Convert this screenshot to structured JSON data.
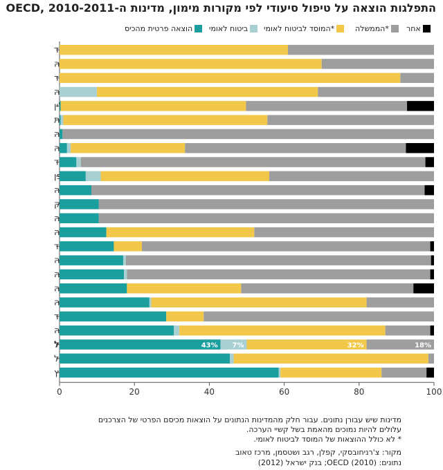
{
  "title": "התפלגות הוצאה על טיפול סיעודי לפי מקורות מימון, מדינות ה-OECD, 2010-2011",
  "colors": {
    "private_insurance": "#1a9e9e",
    "national_insurance": "#a8d0d2",
    "mosad_subsidy": "#f2c84b",
    "government": "#9e9e9e",
    "other": "#000000"
  },
  "chart_data": {
    "type": "bar",
    "orientation": "horizontal",
    "stacked": true,
    "xlim": [
      0,
      100
    ],
    "xticks": [
      "0",
      "20",
      "40",
      "60",
      "80",
      "100"
    ],
    "categories": [
      "איסלנד",
      "צ'כיה",
      "הולנד",
      "בלגיה",
      "פולין",
      "צרפת",
      "שוודיה",
      "הונגריה",
      "ניו זילנד",
      "יפן",
      "אוסטרליה",
      "דנמרק",
      "נורווגיה",
      "אסטוניה",
      "פינלנד",
      "קנדה",
      "אוסטריה",
      "קוריאה",
      "סלובניה",
      "ספרד",
      "גרמניה",
      "ישראל",
      "פורטוגל",
      "שווייץ"
    ],
    "highlight_category": "ישראל",
    "series": [
      {
        "name": "הוצאה פרטית מהכיס",
        "key": "private_insurance",
        "values": [
          0,
          0,
          0,
          0,
          0.3,
          0.3,
          0.8,
          2,
          4.5,
          7,
          8.5,
          10.5,
          10.5,
          12.5,
          14.5,
          17,
          17.2,
          18,
          24,
          28.5,
          30.5,
          43,
          45.5,
          58.5
        ]
      },
      {
        "name": "ביטוח לאומי",
        "key": "national_insurance",
        "values": [
          0,
          0,
          0,
          10,
          0,
          0.7,
          0,
          1,
          1.2,
          4,
          0,
          0,
          0,
          0,
          0,
          0.7,
          0.8,
          0,
          0.5,
          0,
          1.5,
          7,
          1,
          0.5
        ]
      },
      {
        "name": "המוסד לביטוח לאומי*",
        "key": "mosad_subsidy",
        "values": [
          61,
          70,
          91,
          59,
          49.5,
          54.5,
          0,
          30.5,
          0,
          45,
          0,
          0,
          0,
          39.5,
          7.5,
          0,
          0,
          30.5,
          57.5,
          10,
          55,
          32,
          52,
          27
        ]
      },
      {
        "name": "הממשלה*",
        "key": "government",
        "values": [
          39,
          30,
          9,
          31,
          43,
          44.5,
          99.2,
          59,
          92,
          44,
          89,
          89.5,
          89.5,
          48,
          77,
          81.5,
          81,
          46,
          18,
          61.5,
          12,
          18,
          1.5,
          12
        ]
      },
      {
        "name": "אחר",
        "key": "other",
        "values": [
          0,
          0,
          0,
          0,
          7.2,
          0,
          0,
          7.5,
          2.3,
          0,
          2.5,
          0,
          0,
          0,
          1,
          0.8,
          1,
          5.5,
          0,
          0,
          1,
          0,
          0,
          2
        ]
      }
    ],
    "data_labels": {
      "category": "ישראל",
      "labels": [
        "43%",
        "7%",
        "32%",
        "18%"
      ]
    }
  },
  "legend": {
    "other": "אחר",
    "government": "הממשלה*",
    "mosad": "המוסד לביטוח לאומי*",
    "national": "ביטוח לאומי",
    "private": "הוצאה פרטית מהכיס"
  },
  "notes": {
    "line1": "מדינות שיש עבורן נתונים. עבור חלק מהמדינות הנתונים על הוצאות מכיסם הפרטי של הצרכנים",
    "line2": "עלולים להיות נמוכים מהאמת בשל קשיי הערכה.",
    "line3": "* לא כולל ההוצאות של המוסד לביטוח לאומי.",
    "source1": "מקור: צ'רניחובסקי, קפלן, רגב ושטסמן, מרכז טאוב",
    "source2": "נתונים: OECD (2010); בנק ישראל (2012)"
  }
}
